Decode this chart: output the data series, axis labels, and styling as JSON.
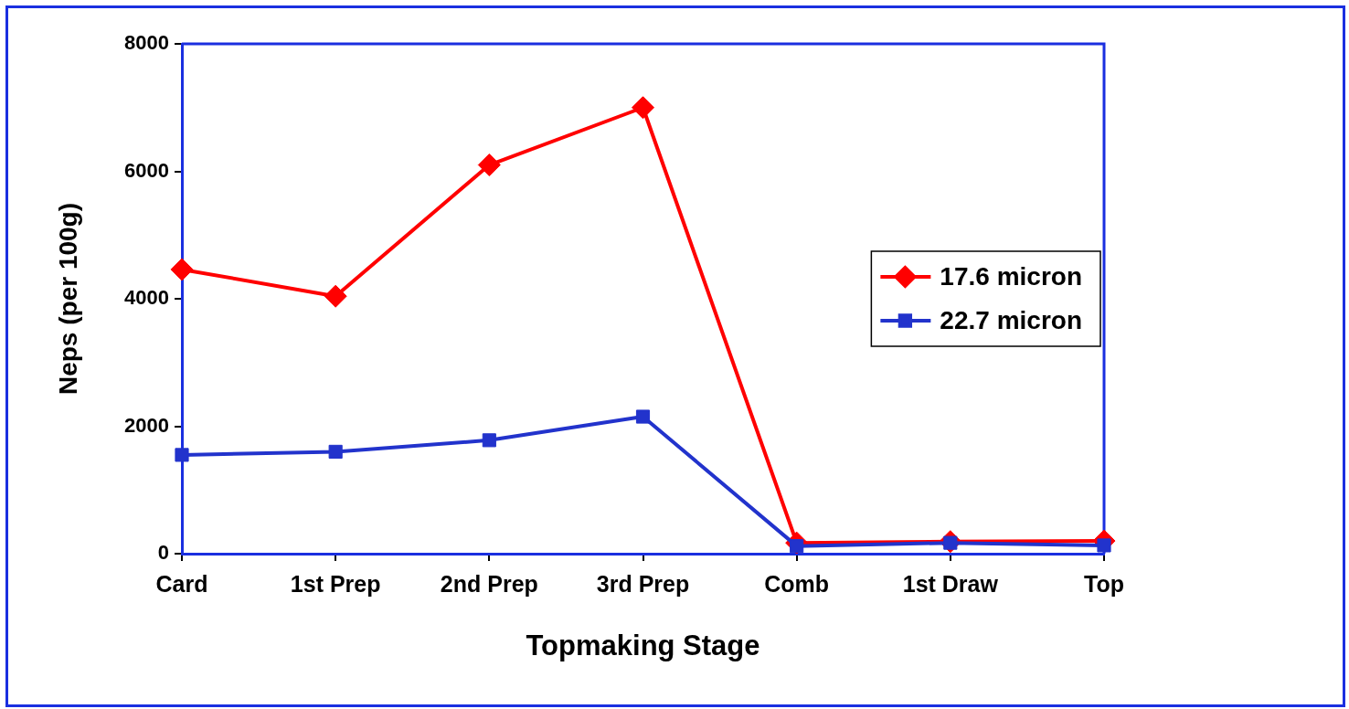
{
  "chart_data": {
    "type": "line",
    "xlabel": "Topmaking Stage",
    "ylabel": "Neps (per 100g)",
    "categories": [
      "Card",
      "1st Prep",
      "2nd Prep",
      "3rd Prep",
      "Comb",
      "1st Draw",
      "Top"
    ],
    "ylim": [
      0,
      8000
    ],
    "yticks": [
      0,
      2000,
      4000,
      6000,
      8000
    ],
    "grid": false,
    "legend": "right",
    "line_style": "solid",
    "series": [
      {
        "name": "17.6 micron",
        "color": "#ff0000",
        "marker": "diamond",
        "values": [
          4460,
          4040,
          6100,
          7000,
          170,
          190,
          200
        ]
      },
      {
        "name": "22.7 micron",
        "color": "#2233cc",
        "marker": "square",
        "values": [
          1550,
          1600,
          1780,
          2150,
          120,
          170,
          130
        ]
      }
    ]
  }
}
